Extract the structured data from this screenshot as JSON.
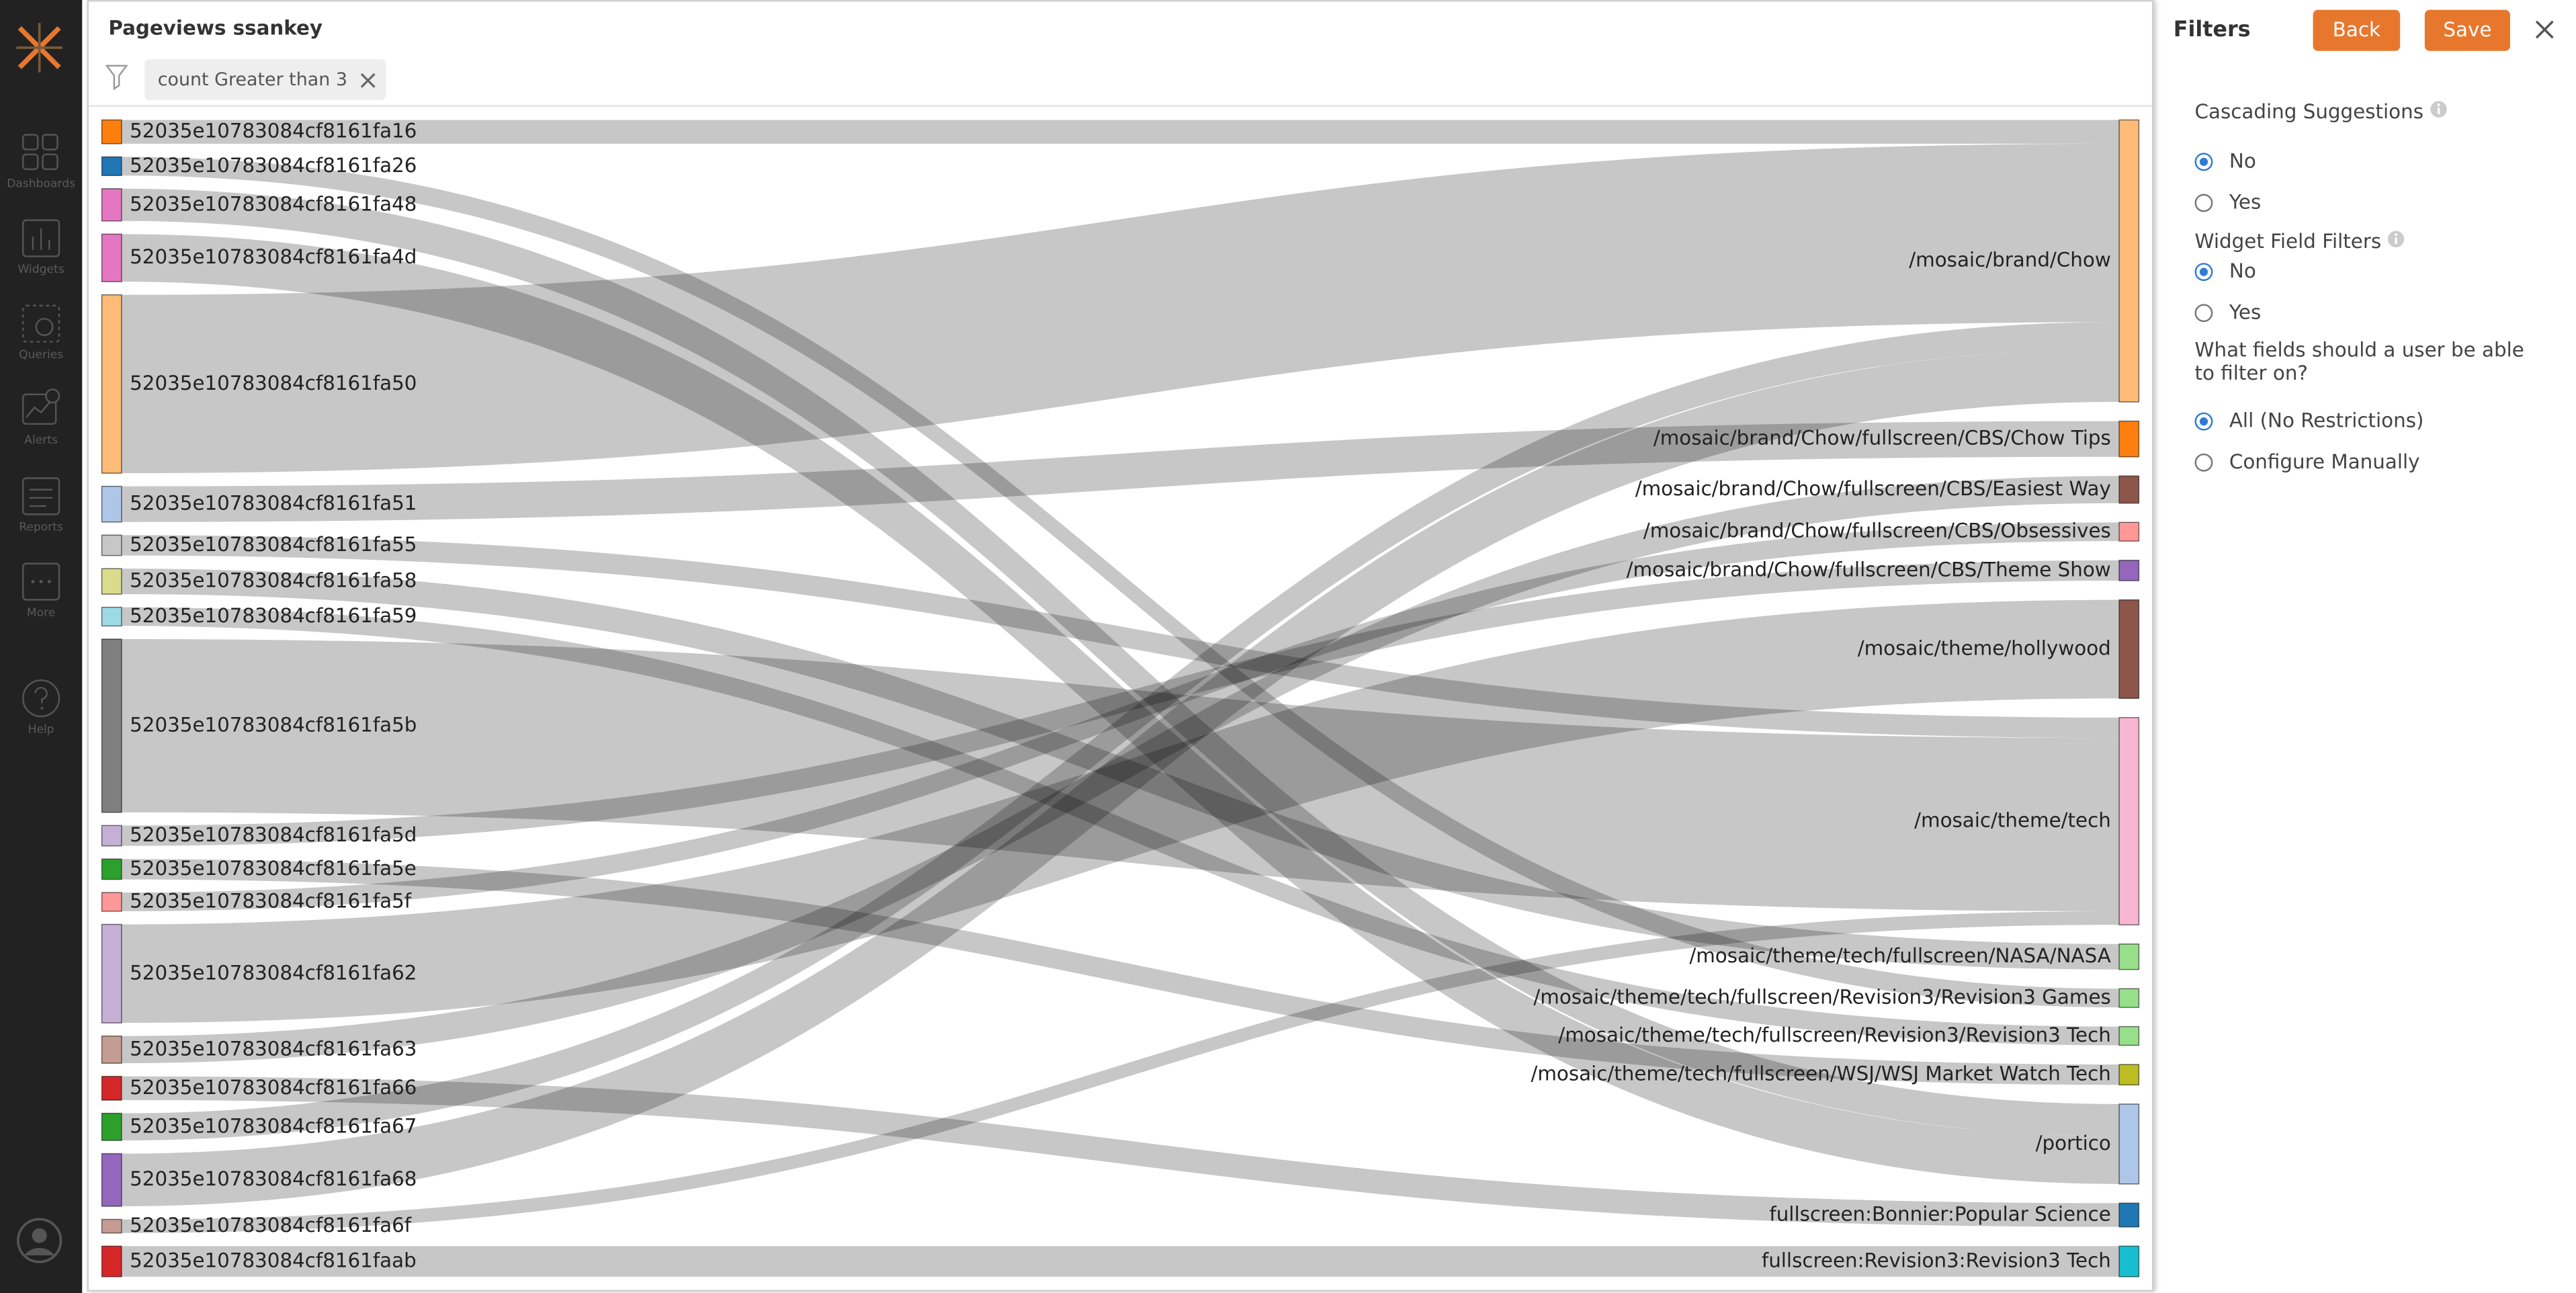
{
  "sidebar": {
    "items": [
      "Dashboards",
      "Widgets",
      "Queries",
      "Alerts",
      "Reports",
      "More",
      "Help"
    ]
  },
  "widget": {
    "title": "Pageviews ssankey",
    "filter_chip": "count Greater than 3"
  },
  "chart_data": {
    "type": "sankey",
    "sources": [
      {
        "name": "52035e10783084cf8161fa16",
        "color": "#ff7f0e"
      },
      {
        "name": "52035e10783084cf8161fa26",
        "color": "#1f77b4"
      },
      {
        "name": "52035e10783084cf8161fa48",
        "color": "#e377c2"
      },
      {
        "name": "52035e10783084cf8161fa4d",
        "color": "#e377c2"
      },
      {
        "name": "52035e10783084cf8161fa50",
        "color": "#ffbb78"
      },
      {
        "name": "52035e10783084cf8161fa51",
        "color": "#aec7e8"
      },
      {
        "name": "52035e10783084cf8161fa55",
        "color": "#c7c7c7"
      },
      {
        "name": "52035e10783084cf8161fa58",
        "color": "#dbdb8d"
      },
      {
        "name": "52035e10783084cf8161fa59",
        "color": "#9edae5"
      },
      {
        "name": "52035e10783084cf8161fa5b",
        "color": "#7f7f7f"
      },
      {
        "name": "52035e10783084cf8161fa5d",
        "color": "#c5b0d5"
      },
      {
        "name": "52035e10783084cf8161fa5e",
        "color": "#2ca02c"
      },
      {
        "name": "52035e10783084cf8161fa5f",
        "color": "#ff9896"
      },
      {
        "name": "52035e10783084cf8161fa62",
        "color": "#c5b0d5"
      },
      {
        "name": "52035e10783084cf8161fa63",
        "color": "#c49c94"
      },
      {
        "name": "52035e10783084cf8161fa66",
        "color": "#d62728"
      },
      {
        "name": "52035e10783084cf8161fa67",
        "color": "#2ca02c"
      },
      {
        "name": "52035e10783084cf8161fa68",
        "color": "#9467bd"
      },
      {
        "name": "52035e10783084cf8161fa6f",
        "color": "#c49c94"
      },
      {
        "name": "52035e10783084cf8161faab",
        "color": "#d62728"
      }
    ],
    "targets": [
      {
        "name": "/mosaic/brand/Chow",
        "color": "#ffbb78"
      },
      {
        "name": "/mosaic/brand/Chow/fullscreen/CBS/Chow Tips",
        "color": "#ff7f0e"
      },
      {
        "name": "/mosaic/brand/Chow/fullscreen/CBS/Easiest Way",
        "color": "#8c564b"
      },
      {
        "name": "/mosaic/brand/Chow/fullscreen/CBS/Obsessives",
        "color": "#ff9896"
      },
      {
        "name": "/mosaic/brand/Chow/fullscreen/CBS/Theme Show",
        "color": "#9467bd"
      },
      {
        "name": "/mosaic/theme/hollywood",
        "color": "#8c564b"
      },
      {
        "name": "/mosaic/theme/tech",
        "color": "#f7b6d2"
      },
      {
        "name": "/mosaic/theme/tech/fullscreen/NASA/NASA",
        "color": "#98df8a"
      },
      {
        "name": "/mosaic/theme/tech/fullscreen/Revision3/Revision3 Games",
        "color": "#98df8a"
      },
      {
        "name": "/mosaic/theme/tech/fullscreen/Revision3/Revision3 Tech",
        "color": "#98df8a"
      },
      {
        "name": "/mosaic/theme/tech/fullscreen/WSJ/WSJ Market Watch Tech",
        "color": "#bcbd22"
      },
      {
        "name": "/portico",
        "color": "#aec7e8"
      },
      {
        "name": "fullscreen:Bonnier:Popular Science",
        "color": "#1f77b4"
      },
      {
        "name": "fullscreen:Revision3:Revision3 Tech",
        "color": "#17becf"
      }
    ],
    "links": [
      {
        "source": "52035e10783084cf8161fa16",
        "target": "/mosaic/brand/Chow",
        "value": 14
      },
      {
        "source": "52035e10783084cf8161fa26",
        "target": "/mosaic/theme/tech/fullscreen/Revision3/Revision3 Games",
        "value": 11
      },
      {
        "source": "52035e10783084cf8161fa48",
        "target": "/portico",
        "value": 19
      },
      {
        "source": "52035e10783084cf8161fa4d",
        "target": "/portico",
        "value": 28
      },
      {
        "source": "52035e10783084cf8161fa50",
        "target": "/mosaic/brand/Chow",
        "value": 105
      },
      {
        "source": "52035e10783084cf8161fa51",
        "target": "/mosaic/brand/Chow/fullscreen/CBS/Chow Tips",
        "value": 21
      },
      {
        "source": "52035e10783084cf8161fa55",
        "target": "/mosaic/theme/tech",
        "value": 12
      },
      {
        "source": "52035e10783084cf8161fa58",
        "target": "/mosaic/theme/tech/fullscreen/NASA/NASA",
        "value": 15
      },
      {
        "source": "52035e10783084cf8161fa59",
        "target": "/mosaic/theme/tech/fullscreen/Revision3/Revision3 Tech",
        "value": 11
      },
      {
        "source": "52035e10783084cf8161fa5b",
        "target": "/mosaic/theme/tech",
        "value": 102
      },
      {
        "source": "52035e10783084cf8161fa5d",
        "target": "/mosaic/brand/Chow/fullscreen/CBS/Theme Show",
        "value": 12
      },
      {
        "source": "52035e10783084cf8161fa5e",
        "target": "/mosaic/theme/tech/fullscreen/WSJ/WSJ Market Watch Tech",
        "value": 12
      },
      {
        "source": "52035e10783084cf8161fa5f",
        "target": "/mosaic/brand/Chow/fullscreen/CBS/Obsessives",
        "value": 11
      },
      {
        "source": "52035e10783084cf8161fa62",
        "target": "/mosaic/theme/hollywood",
        "value": 58
      },
      {
        "source": "52035e10783084cf8161fa63",
        "target": "/mosaic/brand/Chow/fullscreen/CBS/Easiest Way",
        "value": 16
      },
      {
        "source": "52035e10783084cf8161fa66",
        "target": "fullscreen:Bonnier:Popular Science",
        "value": 14
      },
      {
        "source": "52035e10783084cf8161fa67",
        "target": "/mosaic/brand/Chow",
        "value": 16
      },
      {
        "source": "52035e10783084cf8161fa68",
        "target": "/mosaic/brand/Chow",
        "value": 31
      },
      {
        "source": "52035e10783084cf8161fa6f",
        "target": "/mosaic/theme/tech",
        "value": 8
      },
      {
        "source": "52035e10783084cf8161faab",
        "target": "fullscreen:Revision3:Revision3 Tech",
        "value": 18
      }
    ]
  },
  "filters_panel": {
    "title": "Filters",
    "back": "Back",
    "save": "Save",
    "cascading": {
      "label": "Cascading Suggestions",
      "options": [
        "No",
        "Yes"
      ]
    },
    "widget_field_filters": {
      "label": "Widget Field Filters",
      "options": [
        "No",
        "Yes"
      ]
    },
    "fields_question": {
      "label": "What fields should a user be able to filter on?",
      "options": [
        "All (No Restrictions)",
        "Configure Manually"
      ]
    }
  }
}
